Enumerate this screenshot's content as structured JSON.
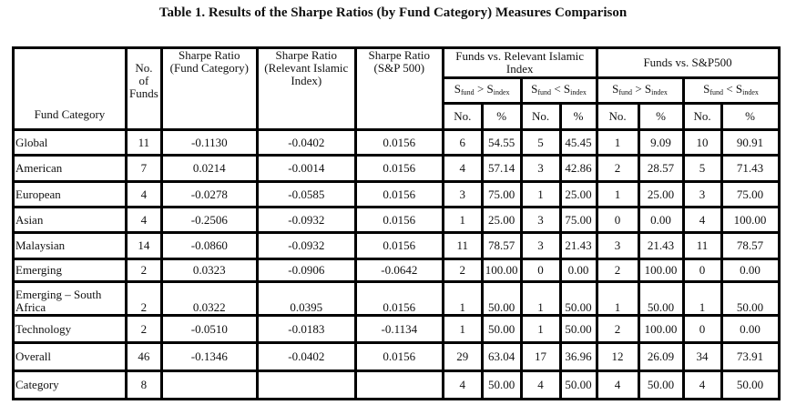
{
  "title": "Table 1. Results of the Sharpe Ratios (by Fund Category) Measures Comparison",
  "headers": {
    "fund_category": "Fund Category",
    "no_of_funds": "No. of Funds",
    "sr_fund": "Sharpe Ratio (Fund Category)",
    "sr_islamic": "Sharpe Ratio (Relevant Islamic Index)",
    "sr_sp": "Sharpe Ratio (S&P 500)",
    "group_islamic": "Funds vs. Relevant Islamic Index",
    "group_sp": "Funds vs. S&P500",
    "s": "S",
    "fund_sub": "fund",
    "index_sub": "index",
    "gt": " > ",
    "lt": " < ",
    "no": "No.",
    "pct": "%"
  },
  "rows": [
    {
      "cat": "Global",
      "n": "11",
      "srf": "-0.1130",
      "sri": "-0.0402",
      "srs": "0.0156",
      "v": [
        "6",
        "54.55",
        "5",
        "45.45",
        "1",
        "9.09",
        "10",
        "90.91"
      ]
    },
    {
      "cat": "American",
      "n": "7",
      "srf": "0.0214",
      "sri": "-0.0014",
      "srs": "0.0156",
      "v": [
        "4",
        "57.14",
        "3",
        "42.86",
        "2",
        "28.57",
        "5",
        "71.43"
      ]
    },
    {
      "cat": "European",
      "n": "4",
      "srf": "-0.0278",
      "sri": "-0.0585",
      "srs": "0.0156",
      "v": [
        "3",
        "75.00",
        "1",
        "25.00",
        "1",
        "25.00",
        "3",
        "75.00"
      ]
    },
    {
      "cat": "Asian",
      "n": "4",
      "srf": "-0.2506",
      "sri": "-0.0932",
      "srs": "0.0156",
      "v": [
        "1",
        "25.00",
        "3",
        "75.00",
        "0",
        "0.00",
        "4",
        "100.00"
      ]
    },
    {
      "cat": "Malaysian",
      "n": "14",
      "srf": "-0.0860",
      "sri": "-0.0932",
      "srs": "0.0156",
      "v": [
        "11",
        "78.57",
        "3",
        "21.43",
        "3",
        "21.43",
        "11",
        "78.57"
      ]
    },
    {
      "cat": "Emerging",
      "n": "2",
      "srf": "0.0323",
      "sri": "-0.0906",
      "srs": "-0.0642",
      "v": [
        "2",
        "100.00",
        "0",
        "0.00",
        "2",
        "100.00",
        "0",
        "0.00"
      ]
    },
    {
      "cat": "Emerging – South Africa",
      "n": "2",
      "srf": "0.0322",
      "sri": "0.0395",
      "srs": "0.0156",
      "v": [
        "1",
        "50.00",
        "1",
        "50.00",
        "1",
        "50.00",
        "1",
        "50.00"
      ]
    },
    {
      "cat": "Technology",
      "n": "2",
      "srf": "-0.0510",
      "sri": "-0.0183",
      "srs": "-0.1134",
      "v": [
        "1",
        "50.00",
        "1",
        "50.00",
        "2",
        "100.00",
        "0",
        "0.00"
      ]
    },
    {
      "cat": "Overall",
      "n": "46",
      "srf": "-0.1346",
      "sri": "-0.0402",
      "srs": "0.0156",
      "v": [
        "29",
        "63.04",
        "17",
        "36.96",
        "12",
        "26.09",
        "34",
        "73.91"
      ]
    },
    {
      "cat": "Category",
      "n": "8",
      "srf": "",
      "sri": "",
      "srs": "",
      "v": [
        "4",
        "50.00",
        "4",
        "50.00",
        "4",
        "50.00",
        "4",
        "50.00"
      ]
    }
  ]
}
